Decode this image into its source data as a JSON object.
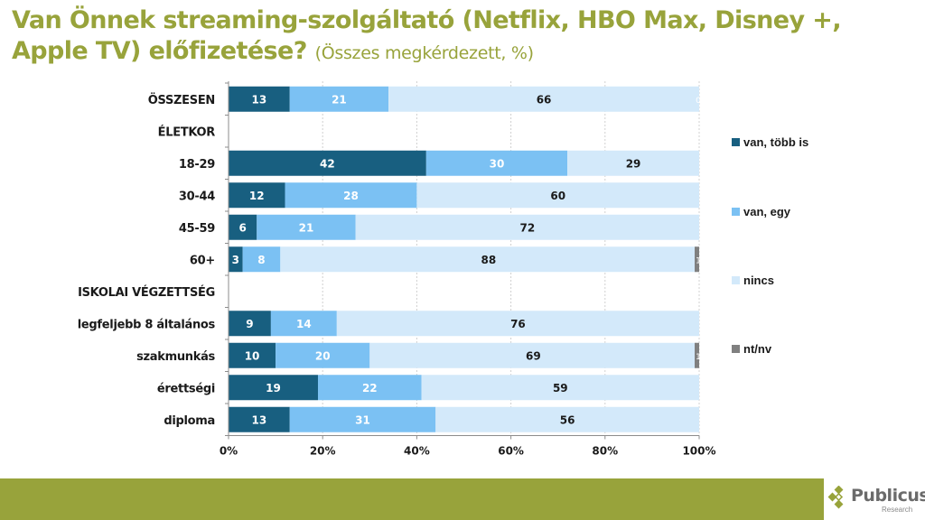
{
  "slide": {
    "title_main": "Van Önnek streaming-szolgáltató (Netflix, HBO Max, Disney +, Apple TV) előfizetése?",
    "title_sub": "(Összes megkérdezett, %)",
    "logo_name": "Publicus",
    "logo_sub": "Research"
  },
  "colors": {
    "title": "#98a33b",
    "footer": "#98a33b",
    "van_tobb": "#185f80",
    "van_egy": "#7bc1f3",
    "nincs": "#d3e9fa",
    "ntnv": "#808080"
  },
  "chart_data": {
    "type": "bar",
    "orientation": "horizontal",
    "stacked": "100%",
    "title": "Van Önnek streaming-szolgáltató (Netflix, HBO Max, Disney +, Apple TV) előfizetése? (Összes megkérdezett, %)",
    "xlabel": "",
    "ylabel": "",
    "xlim": [
      0,
      100
    ],
    "x_ticks": [
      "0%",
      "20%",
      "40%",
      "60%",
      "80%",
      "100%"
    ],
    "grid": "vertical dashed",
    "legend_position": "right",
    "categories": [
      "ÖSSZESEN",
      "ÉLETKOR",
      "18-29",
      "30-44",
      "45-59",
      "60+",
      "ISKOLAI VÉGZETTSÉG",
      "legfeljebb 8 általános",
      "szakmunkás",
      "érettségi",
      "diploma"
    ],
    "series": [
      {
        "name": "van, több is",
        "values": [
          13,
          null,
          42,
          12,
          6,
          3,
          null,
          9,
          10,
          19,
          13
        ]
      },
      {
        "name": "van, egy",
        "values": [
          21,
          null,
          30,
          28,
          21,
          8,
          null,
          14,
          20,
          22,
          31
        ]
      },
      {
        "name": "nincs",
        "values": [
          66,
          null,
          29,
          60,
          72,
          88,
          null,
          76,
          69,
          59,
          56
        ]
      },
      {
        "name": "nt/nv",
        "values": [
          0,
          null,
          0,
          0,
          0,
          1,
          null,
          0,
          1,
          0,
          0
        ]
      }
    ],
    "visible_small_labels": {
      "nt/nv": [
        0,
        null,
        null,
        null,
        null,
        1,
        null,
        null,
        1,
        null,
        null
      ]
    }
  }
}
